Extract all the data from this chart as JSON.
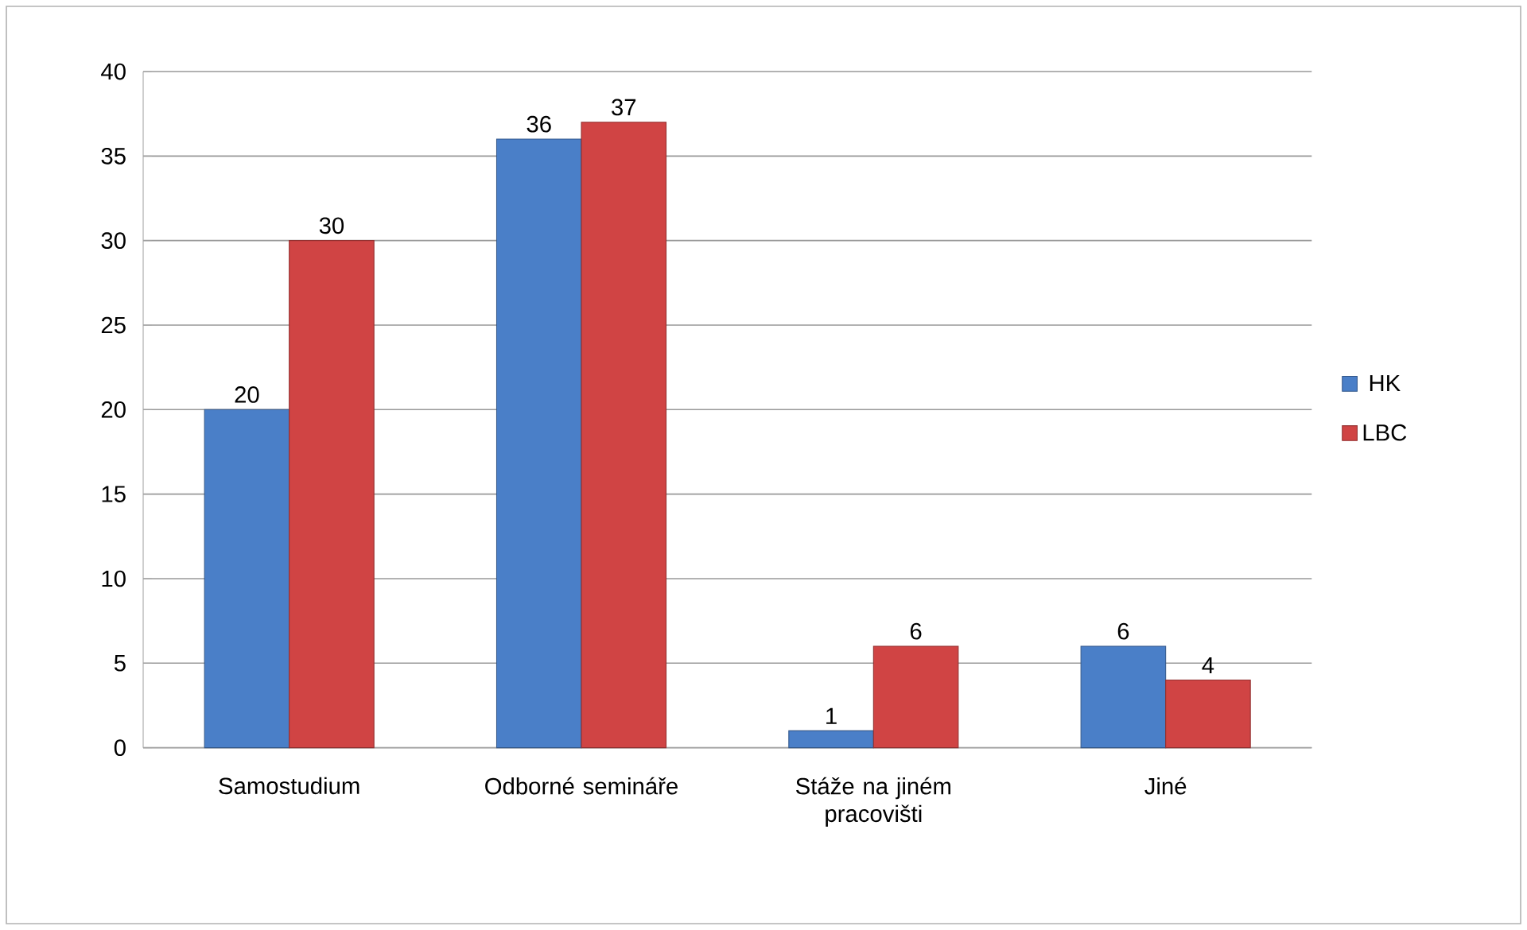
{
  "chart_data": {
    "type": "bar",
    "categories": [
      "Samostudium",
      "Odborné semináře",
      "Stáže na jiném pracovišti",
      "Jiné"
    ],
    "series": [
      {
        "name": "HK",
        "color": "#4a7fc8",
        "values": [
          20,
          36,
          1,
          6
        ]
      },
      {
        "name": "LBC",
        "color": "#d04444",
        "values": [
          30,
          37,
          6,
          4
        ]
      }
    ],
    "ylim": [
      0,
      40
    ],
    "yticks": [
      0,
      5,
      10,
      15,
      20,
      25,
      30,
      35,
      40
    ],
    "grid": "y",
    "legend": "right",
    "data_labels": true
  }
}
